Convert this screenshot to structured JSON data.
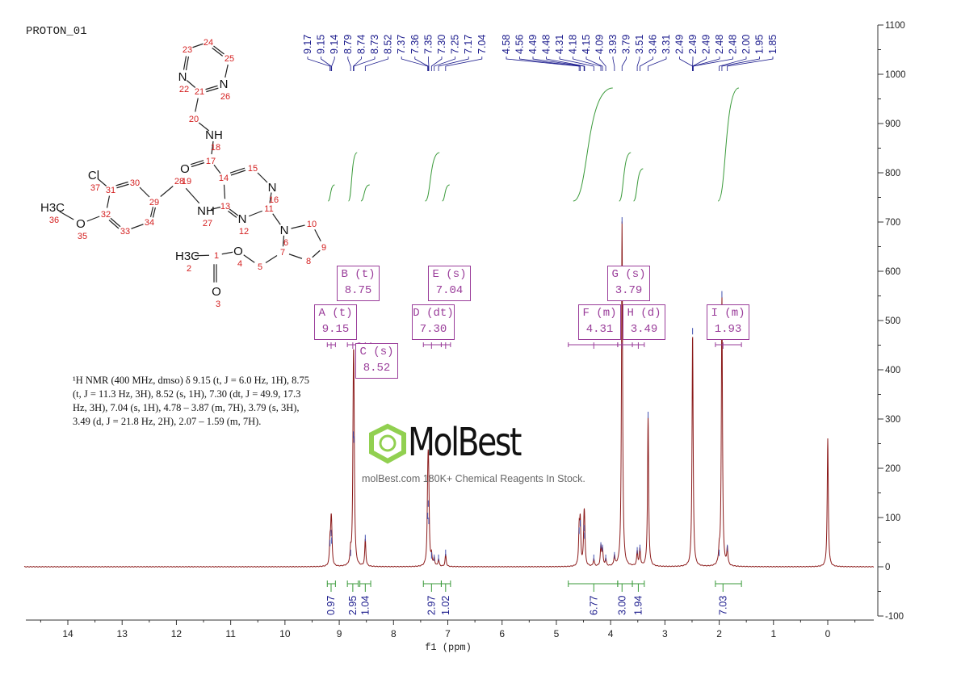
{
  "title": "PROTON_01",
  "description": [
    "¹H NMR (400 MHz, dmso) δ 9.15 (t, J = 6.0 Hz, 1H), 8.75",
    "(t, J = 11.3 Hz, 3H), 8.52 (s, 1H), 7.30 (dt, J = 49.9, 17.3",
    "Hz, 3H), 7.04 (s, 1H), 4.78 – 3.87 (m, 7H), 3.79 (s, 3H),",
    "3.49 (d, J = 21.8 Hz, 2H), 2.07 – 1.59 (m, 7H)."
  ],
  "watermark": {
    "logo": "MolBest",
    "text": "molBest.com 180K+ Chemical Reagents In Stock."
  },
  "colors": {
    "spectrum": "#8b1a1a",
    "peak_labels": "#1a1a8c",
    "integrals": "#3a9a3a",
    "multiplets": "#9a3d9a",
    "atom_numbers": "#d42020"
  },
  "structure": {
    "atoms": [
      {
        "n": "1",
        "el": ""
      },
      {
        "n": "2",
        "el": "H3C"
      },
      {
        "n": "3",
        "el": "O"
      },
      {
        "n": "4",
        "el": "O"
      },
      {
        "n": "5",
        "el": ""
      },
      {
        "n": "6",
        "el": "N"
      },
      {
        "n": "7",
        "el": ""
      },
      {
        "n": "8",
        "el": ""
      },
      {
        "n": "9",
        "el": ""
      },
      {
        "n": "10",
        "el": ""
      },
      {
        "n": "11",
        "el": ""
      },
      {
        "n": "12",
        "el": "N"
      },
      {
        "n": "13",
        "el": ""
      },
      {
        "n": "14",
        "el": ""
      },
      {
        "n": "15",
        "el": ""
      },
      {
        "n": "16",
        "el": "N"
      },
      {
        "n": "17",
        "el": ""
      },
      {
        "n": "18",
        "el": "NH"
      },
      {
        "n": "19",
        "el": "O"
      },
      {
        "n": "20",
        "el": ""
      },
      {
        "n": "21",
        "el": ""
      },
      {
        "n": "22",
        "el": "N"
      },
      {
        "n": "23",
        "el": ""
      },
      {
        "n": "24",
        "el": ""
      },
      {
        "n": "25",
        "el": ""
      },
      {
        "n": "26",
        "el": "N"
      },
      {
        "n": "27",
        "el": "NH"
      },
      {
        "n": "28",
        "el": ""
      },
      {
        "n": "29",
        "el": ""
      },
      {
        "n": "30",
        "el": ""
      },
      {
        "n": "31",
        "el": ""
      },
      {
        "n": "32",
        "el": ""
      },
      {
        "n": "33",
        "el": ""
      },
      {
        "n": "34",
        "el": ""
      },
      {
        "n": "35",
        "el": "O"
      },
      {
        "n": "36",
        "el": "H3C"
      },
      {
        "n": "37",
        "el": "Cl"
      }
    ]
  },
  "chart_data": {
    "type": "line",
    "title": "PROTON_01",
    "xlabel": "f1 (ppm)",
    "ylabel": "",
    "xlim": [
      14.8,
      -0.85
    ],
    "ylim": [
      -100,
      1100
    ],
    "x_ticks": [
      "14",
      "13",
      "12",
      "11",
      "10",
      "9",
      "8",
      "7",
      "6",
      "5",
      "4",
      "3",
      "2",
      "1",
      "0"
    ],
    "y_ticks": [
      "1100",
      "1000",
      "900",
      "800",
      "700",
      "600",
      "500",
      "400",
      "300",
      "200",
      "100",
      "0",
      "-100"
    ],
    "peaks": [
      {
        "ppm": 9.17,
        "h": 45
      },
      {
        "ppm": 9.15,
        "h": 65
      },
      {
        "ppm": 9.14,
        "h": 50
      },
      {
        "ppm": 8.79,
        "h": 25
      },
      {
        "ppm": 8.74,
        "h": 265
      },
      {
        "ppm": 8.73,
        "h": 255
      },
      {
        "ppm": 8.52,
        "h": 55
      },
      {
        "ppm": 7.37,
        "h": 100
      },
      {
        "ppm": 7.36,
        "h": 125
      },
      {
        "ppm": 7.35,
        "h": 90
      },
      {
        "ppm": 7.3,
        "h": 20
      },
      {
        "ppm": 7.25,
        "h": 15
      },
      {
        "ppm": 7.17,
        "h": 15
      },
      {
        "ppm": 7.04,
        "h": 25
      },
      {
        "ppm": 4.58,
        "h": 70
      },
      {
        "ppm": 4.56,
        "h": 85
      },
      {
        "ppm": 4.49,
        "h": 75
      },
      {
        "ppm": 4.48,
        "h": 60
      },
      {
        "ppm": 4.31,
        "h": 15
      },
      {
        "ppm": 4.18,
        "h": 40
      },
      {
        "ppm": 4.15,
        "h": 35
      },
      {
        "ppm": 4.09,
        "h": 15
      },
      {
        "ppm": 3.93,
        "h": 20
      },
      {
        "ppm": 3.79,
        "h": 700
      },
      {
        "ppm": 3.51,
        "h": 30
      },
      {
        "ppm": 3.46,
        "h": 35
      },
      {
        "ppm": 3.31,
        "h": 305
      },
      {
        "ppm": 2.49,
        "h": 475
      },
      {
        "ppm": 2.0,
        "h": 25
      },
      {
        "ppm": 1.95,
        "h": 550
      },
      {
        "ppm": 1.85,
        "h": 35
      },
      {
        "ppm": 0.0,
        "h": 260
      }
    ],
    "peak_labels_group1": [
      "9.17",
      "9.15",
      "9.14",
      "8.79",
      "8.74",
      "8.73",
      "8.52",
      "7.37",
      "7.36",
      "7.35",
      "7.30",
      "7.25",
      "7.17",
      "7.04"
    ],
    "peak_labels_group2": [
      "4.58",
      "4.56",
      "4.49",
      "4.48",
      "4.31",
      "4.18",
      "4.15",
      "4.09",
      "3.93",
      "3.79",
      "3.51",
      "3.46",
      "3.31",
      "2.49",
      "2.49",
      "2.49",
      "2.48",
      "2.48",
      "2.00",
      "1.95",
      "1.85"
    ],
    "integrals": [
      {
        "label": "0.97",
        "from": 9.22,
        "to": 9.07,
        "ppm": 9.15
      },
      {
        "label": "2.95",
        "from": 8.85,
        "to": 8.65,
        "ppm": 8.75
      },
      {
        "label": "1.04",
        "from": 8.62,
        "to": 8.42,
        "ppm": 8.52
      },
      {
        "label": "2.97",
        "from": 7.45,
        "to": 7.12,
        "ppm": 7.3
      },
      {
        "label": "1.02",
        "from": 7.12,
        "to": 6.95,
        "ppm": 7.04
      },
      {
        "label": "6.77",
        "from": 4.78,
        "to": 3.87,
        "ppm": 4.31
      },
      {
        "label": "3.00",
        "from": 3.87,
        "to": 3.6,
        "ppm": 3.79
      },
      {
        "label": "1.94",
        "from": 3.6,
        "to": 3.38,
        "ppm": 3.49
      },
      {
        "label": "7.03",
        "from": 2.07,
        "to": 1.59,
        "ppm": 1.93
      }
    ],
    "multiplets": [
      {
        "name": "A (t)",
        "value": "9.15",
        "ppm": 9.15,
        "range": [
          9.22,
          9.07
        ]
      },
      {
        "name": "B (t)",
        "value": "8.75",
        "ppm": 8.75,
        "range": [
          8.85,
          8.65
        ]
      },
      {
        "name": "C (s)",
        "value": "8.52",
        "ppm": 8.52,
        "range": [
          8.62,
          8.42
        ]
      },
      {
        "name": "D (dt)",
        "value": "7.30",
        "ppm": 7.3,
        "range": [
          7.45,
          7.12
        ]
      },
      {
        "name": "E (s)",
        "value": "7.04",
        "ppm": 7.04,
        "range": [
          7.12,
          6.95
        ]
      },
      {
        "name": "F (m)",
        "value": "4.31",
        "ppm": 4.31,
        "range": [
          4.78,
          3.87
        ]
      },
      {
        "name": "G (s)",
        "value": "3.79",
        "ppm": 3.79,
        "range": [
          3.87,
          3.6
        ]
      },
      {
        "name": "H (d)",
        "value": "3.49",
        "ppm": 3.49,
        "range": [
          3.6,
          3.38
        ]
      },
      {
        "name": "I (m)",
        "value": "1.93",
        "ppm": 1.93,
        "range": [
          2.07,
          1.59
        ]
      }
    ]
  }
}
